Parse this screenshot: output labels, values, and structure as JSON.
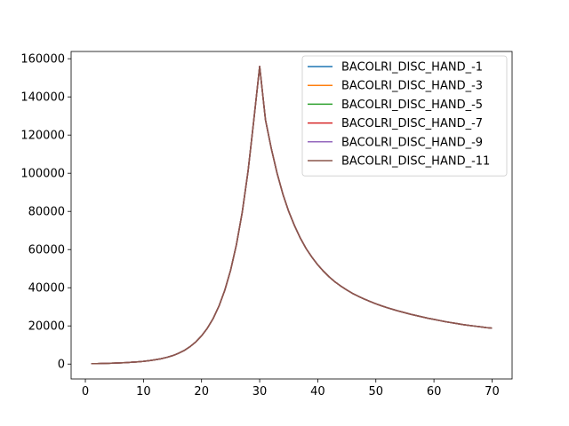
{
  "chart_data": {
    "type": "line",
    "title": "",
    "xlabel": "",
    "ylabel": "",
    "xlim": [
      -2.45,
      73.45
    ],
    "ylim": [
      -7800,
      163800
    ],
    "xticks": [
      0,
      10,
      20,
      30,
      40,
      50,
      60,
      70
    ],
    "yticks": [
      0,
      20000,
      40000,
      60000,
      80000,
      100000,
      120000,
      140000,
      160000
    ],
    "xtick_labels": [
      "0",
      "10",
      "20",
      "30",
      "40",
      "50",
      "60",
      "70"
    ],
    "ytick_labels": [
      "0",
      "20000",
      "40000",
      "60000",
      "80000",
      "100000",
      "120000",
      "140000",
      "160000"
    ],
    "grid": false,
    "legend_position": "top-right",
    "x": [
      1,
      2,
      3,
      4,
      5,
      6,
      7,
      8,
      9,
      10,
      11,
      12,
      13,
      14,
      15,
      16,
      17,
      18,
      19,
      20,
      21,
      22,
      23,
      24,
      25,
      26,
      27,
      28,
      29,
      30,
      31,
      32,
      33,
      34,
      35,
      36,
      37,
      38,
      39,
      40,
      41,
      42,
      43,
      44,
      45,
      46,
      47,
      48,
      49,
      50,
      51,
      52,
      53,
      54,
      55,
      56,
      57,
      58,
      59,
      60,
      61,
      62,
      63,
      64,
      65,
      66,
      67,
      68,
      69,
      70
    ],
    "values": [
      200,
      250,
      320,
      400,
      500,
      620,
      770,
      950,
      1180,
      1460,
      1810,
      2250,
      2800,
      3500,
      4400,
      5600,
      7100,
      9100,
      11600,
      14800,
      18800,
      23900,
      30400,
      38700,
      49200,
      62600,
      79500,
      101000,
      128000,
      156000,
      128000,
      113000,
      100000,
      89000,
      80000,
      72500,
      66000,
      60500,
      56000,
      52000,
      48600,
      45600,
      43000,
      40800,
      38800,
      37000,
      35500,
      34100,
      32800,
      31600,
      30500,
      29500,
      28600,
      27700,
      26900,
      26100,
      25400,
      24700,
      24000,
      23400,
      22800,
      22200,
      21700,
      21200,
      20700,
      20300,
      19900,
      19500,
      19100,
      18800
    ],
    "series": [
      {
        "name": "BACOLRI_DISC_HAND_-1",
        "color": "#1f77b4"
      },
      {
        "name": "BACOLRI_DISC_HAND_-3",
        "color": "#ff7f0e"
      },
      {
        "name": "BACOLRI_DISC_HAND_-5",
        "color": "#2ca02c"
      },
      {
        "name": "BACOLRI_DISC_HAND_-7",
        "color": "#d62728"
      },
      {
        "name": "BACOLRI_DISC_HAND_-9",
        "color": "#9467bd"
      },
      {
        "name": "BACOLRI_DISC_HAND_-11",
        "color": "#8c564b"
      }
    ]
  }
}
